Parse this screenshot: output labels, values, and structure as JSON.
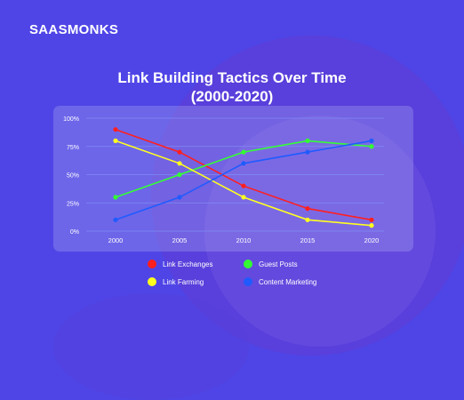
{
  "logo": {
    "text": "SAASMONKS"
  },
  "chart_data": {
    "type": "line",
    "title_line1": "Link Building Tactics Over Time",
    "title_line2": "(2000-2020)",
    "xlabel": "",
    "ylabel": "",
    "x": [
      "2000",
      "2005",
      "2010",
      "2015",
      "2020"
    ],
    "yticks": [
      "100%",
      "75%",
      "50%",
      "25%",
      "0%"
    ],
    "ylim": [
      0,
      100
    ],
    "grid": true,
    "legend_position": "bottom",
    "series": [
      {
        "name": "Link Exchanges",
        "color": "#ff1f1f",
        "values": [
          90,
          70,
          40,
          20,
          10
        ]
      },
      {
        "name": "Guest Posts",
        "color": "#33ff33",
        "values": [
          30,
          50,
          70,
          80,
          75
        ]
      },
      {
        "name": "Link Farming",
        "color": "#ffff1f",
        "values": [
          80,
          60,
          30,
          10,
          5
        ]
      },
      {
        "name": "Content Marketing",
        "color": "#1f5bff",
        "values": [
          10,
          30,
          60,
          70,
          80
        ]
      }
    ]
  }
}
